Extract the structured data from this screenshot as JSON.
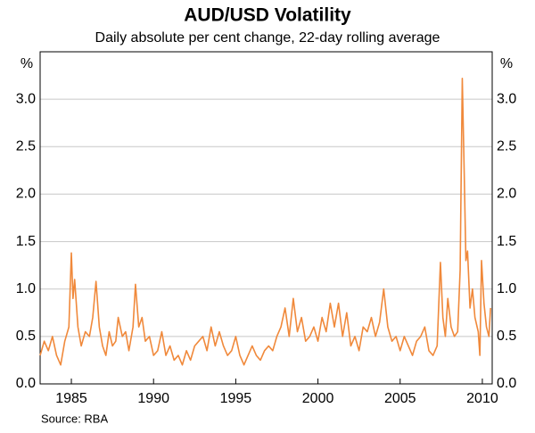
{
  "chart_data": {
    "type": "line",
    "title": "AUD/USD Volatility",
    "subtitle": "Daily absolute per cent change, 22-day rolling average",
    "y_unit": "%",
    "y2_unit": "%",
    "source": "Source: RBA",
    "x": [
      1983.1,
      1983.35,
      1983.6,
      1983.85,
      1984.1,
      1984.35,
      1984.6,
      1984.85,
      1985.0,
      1985.1,
      1985.2,
      1985.4,
      1985.6,
      1985.85,
      1986.1,
      1986.3,
      1986.5,
      1986.7,
      1986.9,
      1987.1,
      1987.3,
      1987.5,
      1987.7,
      1987.85,
      1988.1,
      1988.3,
      1988.5,
      1988.75,
      1988.9,
      1989.1,
      1989.3,
      1989.5,
      1989.75,
      1990.0,
      1990.25,
      1990.5,
      1990.75,
      1991.0,
      1991.25,
      1991.5,
      1991.75,
      1992.0,
      1992.25,
      1992.5,
      1992.75,
      1993.0,
      1993.25,
      1993.5,
      1993.75,
      1994.0,
      1994.25,
      1994.5,
      1994.75,
      1995.0,
      1995.25,
      1995.5,
      1995.75,
      1996.0,
      1996.25,
      1996.5,
      1996.75,
      1997.0,
      1997.25,
      1997.5,
      1997.75,
      1998.0,
      1998.25,
      1998.5,
      1998.75,
      1999.0,
      1999.25,
      1999.5,
      1999.75,
      2000.0,
      2000.25,
      2000.5,
      2000.75,
      2001.0,
      2001.25,
      2001.5,
      2001.75,
      2002.0,
      2002.25,
      2002.5,
      2002.75,
      2003.0,
      2003.25,
      2003.5,
      2003.75,
      2004.0,
      2004.25,
      2004.5,
      2004.75,
      2005.0,
      2005.25,
      2005.5,
      2005.75,
      2006.0,
      2006.25,
      2006.5,
      2006.75,
      2007.0,
      2007.25,
      2007.45,
      2007.6,
      2007.75,
      2007.9,
      2008.1,
      2008.3,
      2008.5,
      2008.65,
      2008.78,
      2008.9,
      2009.0,
      2009.1,
      2009.25,
      2009.4,
      2009.55,
      2009.75,
      2009.85,
      2009.95,
      2010.1,
      2010.25,
      2010.4,
      2010.5
    ],
    "series": [
      {
        "name": "AUD/USD",
        "color": "#f0893b",
        "values": [
          0.3,
          0.45,
          0.35,
          0.5,
          0.3,
          0.2,
          0.45,
          0.6,
          1.38,
          0.9,
          1.1,
          0.6,
          0.4,
          0.55,
          0.5,
          0.7,
          1.08,
          0.6,
          0.4,
          0.3,
          0.55,
          0.4,
          0.45,
          0.7,
          0.5,
          0.55,
          0.35,
          0.6,
          1.05,
          0.6,
          0.7,
          0.45,
          0.5,
          0.3,
          0.35,
          0.55,
          0.3,
          0.4,
          0.25,
          0.3,
          0.2,
          0.35,
          0.25,
          0.4,
          0.45,
          0.5,
          0.35,
          0.6,
          0.4,
          0.55,
          0.4,
          0.3,
          0.35,
          0.5,
          0.3,
          0.2,
          0.3,
          0.4,
          0.3,
          0.25,
          0.35,
          0.4,
          0.35,
          0.5,
          0.6,
          0.8,
          0.5,
          0.9,
          0.55,
          0.7,
          0.45,
          0.5,
          0.6,
          0.45,
          0.7,
          0.55,
          0.85,
          0.6,
          0.85,
          0.5,
          0.75,
          0.4,
          0.5,
          0.35,
          0.6,
          0.55,
          0.7,
          0.5,
          0.65,
          1.0,
          0.6,
          0.45,
          0.5,
          0.35,
          0.5,
          0.4,
          0.3,
          0.45,
          0.5,
          0.6,
          0.35,
          0.3,
          0.4,
          1.28,
          0.7,
          0.5,
          0.9,
          0.6,
          0.5,
          0.55,
          1.2,
          3.22,
          2.2,
          1.3,
          1.4,
          0.8,
          1.0,
          0.7,
          0.55,
          0.3,
          1.3,
          0.85,
          0.6,
          0.5,
          0.8
        ]
      }
    ],
    "xlim": [
      1983.1,
      2010.6
    ],
    "xticks": [
      1985,
      1990,
      1995,
      2000,
      2005,
      2010
    ],
    "ylim": [
      0,
      3.5
    ],
    "yticks": [
      {
        "value": 0,
        "label": "0.0"
      },
      {
        "value": 0.5,
        "label": "0.5"
      },
      {
        "value": 1,
        "label": "1.0"
      },
      {
        "value": 1.5,
        "label": "1.5"
      },
      {
        "value": 2,
        "label": "2.0"
      },
      {
        "value": 2.5,
        "label": "2.5"
      },
      {
        "value": 3,
        "label": "3.0"
      }
    ],
    "y2lim": [
      0,
      3.5
    ],
    "y2ticks": [
      {
        "value": 0,
        "label": "0.0"
      },
      {
        "value": 0.5,
        "label": "0.5"
      },
      {
        "value": 1,
        "label": "1.0"
      },
      {
        "value": 1.5,
        "label": "1.5"
      },
      {
        "value": 2,
        "label": "2.0"
      },
      {
        "value": 2.5,
        "label": "2.5"
      },
      {
        "value": 3,
        "label": "3.0"
      }
    ],
    "grid": true
  }
}
